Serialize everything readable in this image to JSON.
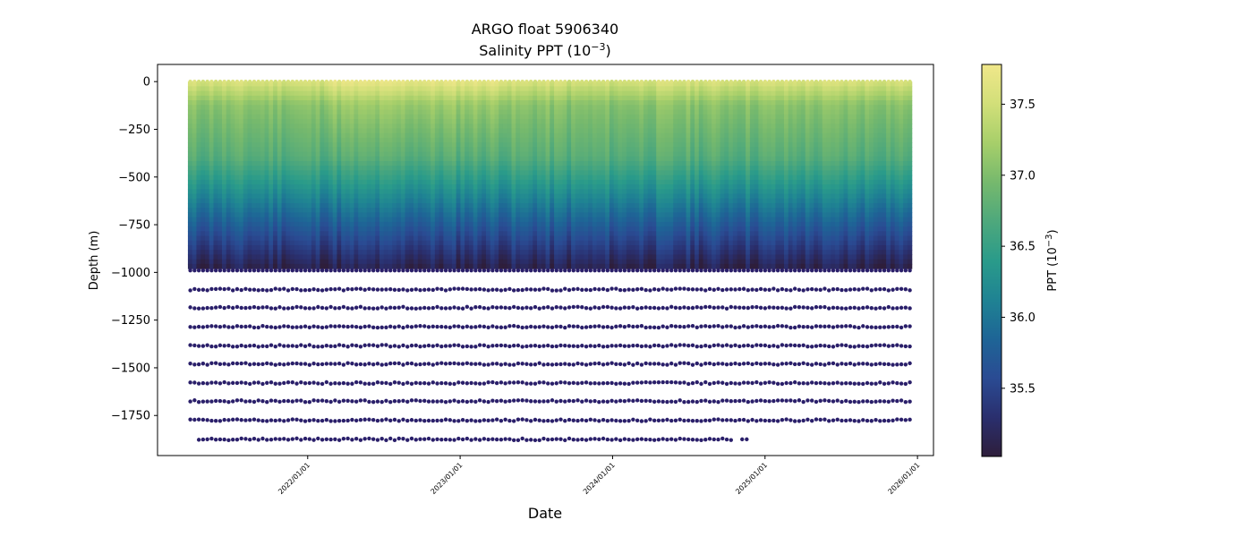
{
  "chart_data": {
    "type": "scatter",
    "title_line1": "ARGO float 5906340",
    "title_line2_prefix": "Salinity PPT (10",
    "title_line2_sup": "−3",
    "title_line2_suffix": ")",
    "xlabel": "Date",
    "ylabel": "Depth (m)",
    "ylim": [
      -1960,
      90
    ],
    "xlim": [
      2021.015,
      2026.105
    ],
    "yticks": [
      0,
      -250,
      -500,
      -750,
      -1000,
      -1250,
      -1500,
      -1750
    ],
    "ytick_labels": [
      "0",
      "−250",
      "−500",
      "−750",
      "−1000",
      "−1250",
      "−1500",
      "−1750"
    ],
    "xticks": [
      2022,
      2023,
      2024,
      2025,
      2026
    ],
    "xtick_labels": [
      "2022/01/01",
      "2023/01/01",
      "2024/01/01",
      "2025/01/01",
      "2026/01/01"
    ],
    "profile_start": 2021.23,
    "profile_end": 2025.95,
    "profile_count": 170,
    "continuous_depth_bottom": -980,
    "deep_levels": [
      -1090,
      -1185,
      -1285,
      -1385,
      -1480,
      -1580,
      -1675,
      -1775,
      -1875
    ],
    "last_level_start": 2021.28,
    "last_level_end": 2024.78,
    "last_level_extra": [
      2024.85,
      2024.88
    ],
    "colorbar": {
      "min": 35.02,
      "max": 37.78,
      "ticks": [
        35.5,
        36.0,
        36.5,
        37.0,
        37.5
      ],
      "tick_labels": [
        "35.5",
        "36.0",
        "36.5",
        "37.0",
        "37.5"
      ],
      "label_prefix": "PPT (10",
      "label_sup": "−3",
      "label_suffix": ")",
      "colormap": [
        "#2e1e3b",
        "#2a2f6e",
        "#2a4b93",
        "#1e6596",
        "#1f8393",
        "#2a9b8a",
        "#4ea87c",
        "#76b96d",
        "#a7cf6a",
        "#d2df79",
        "#f0e78a"
      ]
    }
  }
}
